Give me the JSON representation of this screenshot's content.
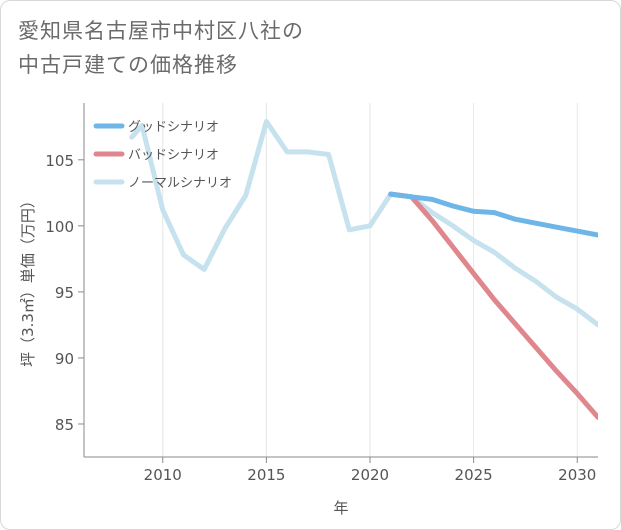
{
  "title_lines": [
    "愛知県名古屋市中村区八社の",
    "中古戸建ての価格推移"
  ],
  "chart_data": {
    "type": "line",
    "title": "愛知県名古屋市中村区八社の中古戸建ての価格推移",
    "xlabel": "年",
    "ylabel": "坪（3.3㎡）単価（万円）",
    "xlim": [
      2006.2,
      2031
    ],
    "ylim": [
      82.5,
      109.3
    ],
    "xticks": [
      2010,
      2015,
      2020,
      2025,
      2030
    ],
    "yticks": [
      85,
      90,
      95,
      100,
      105
    ],
    "grid": "vertical",
    "legend_position": "top-left",
    "series": [
      {
        "name": "ノーマルシナリオ",
        "color": "#c5e2ee",
        "x": [
          2008.5,
          2009,
          2010,
          2011,
          2012,
          2013,
          2014,
          2015,
          2016,
          2017,
          2018,
          2019,
          2020,
          2021,
          2022,
          2023,
          2024,
          2025,
          2026,
          2027,
          2028,
          2029,
          2030,
          2031
        ],
        "y": [
          106.7,
          107.6,
          101.2,
          97.8,
          96.7,
          99.8,
          102.3,
          107.9,
          105.6,
          105.6,
          105.4,
          99.7,
          100.0,
          102.4,
          102.2,
          101.0,
          100.0,
          98.9,
          98.0,
          96.8,
          95.8,
          94.6,
          93.7,
          92.5
        ]
      },
      {
        "name": "バッドシナリオ",
        "color": "#e0868d",
        "x": [
          2021,
          2022,
          2023,
          2024,
          2025,
          2026,
          2027,
          2028,
          2029,
          2030,
          2031
        ],
        "y": [
          102.4,
          102.2,
          100.4,
          98.4,
          96.4,
          94.4,
          92.6,
          90.8,
          89.0,
          87.3,
          85.5
        ]
      },
      {
        "name": "グッドシナリオ",
        "color": "#6fb6e8",
        "x": [
          2021,
          2022,
          2023,
          2024,
          2025,
          2026,
          2027,
          2028,
          2029,
          2030,
          2031
        ],
        "y": [
          102.4,
          102.2,
          102.0,
          101.5,
          101.1,
          101.0,
          100.5,
          100.2,
          99.9,
          99.6,
          99.3
        ]
      }
    ],
    "legend": [
      "グッドシナリオ",
      "バッドシナリオ",
      "ノーマルシナリオ"
    ]
  }
}
